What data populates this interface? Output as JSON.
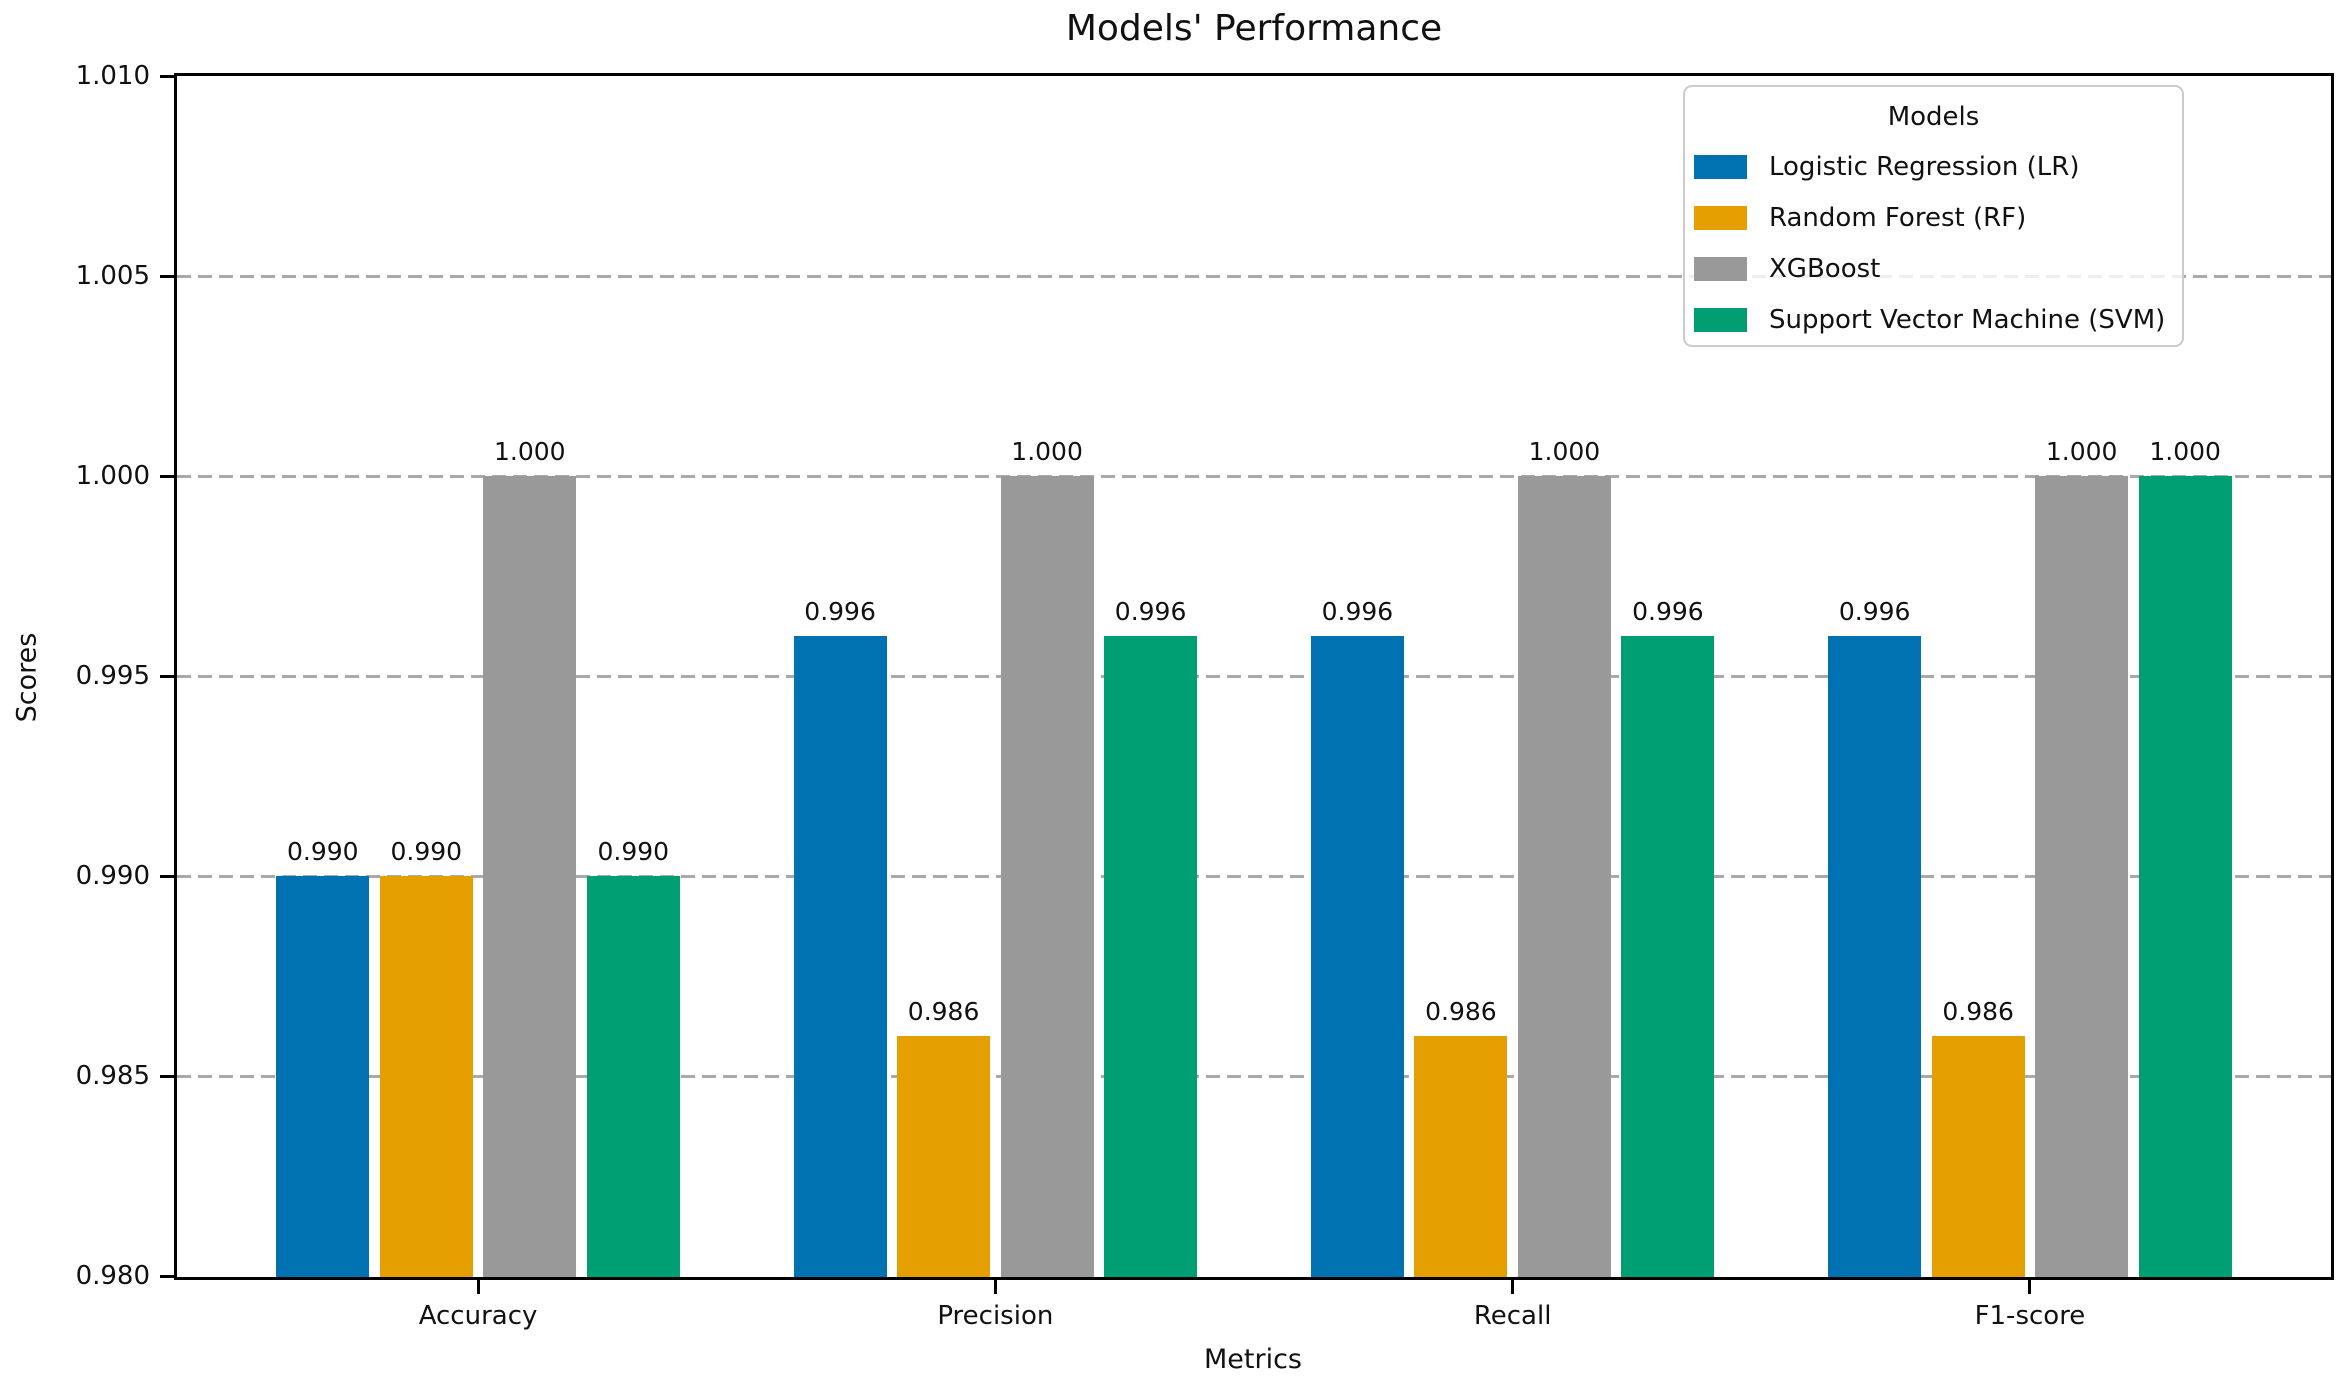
{
  "chart_data": {
    "type": "bar",
    "title": "Models' Performance",
    "xlabel": "Metrics",
    "ylabel": "Scores",
    "categories": [
      "Accuracy",
      "Precision",
      "Recall",
      "F1-score"
    ],
    "series": [
      {
        "name": "Logistic Regression (LR)",
        "color": "#0072B2",
        "values": [
          0.99,
          0.996,
          0.996,
          0.996
        ],
        "labels": [
          "0.990",
          "0.996",
          "0.996",
          "0.996"
        ]
      },
      {
        "name": "Random Forest (RF)",
        "color": "#E69F00",
        "values": [
          0.99,
          0.986,
          0.986,
          0.986
        ],
        "labels": [
          "0.990",
          "0.986",
          "0.986",
          "0.986"
        ]
      },
      {
        "name": "XGBoost",
        "color": "#999999",
        "values": [
          1.0,
          1.0,
          1.0,
          1.0
        ],
        "labels": [
          "1.000",
          "1.000",
          "1.000",
          "1.000"
        ]
      },
      {
        "name": "Support Vector Machine (SVM)",
        "color": "#009E73",
        "values": [
          0.99,
          0.996,
          0.996,
          1.0
        ],
        "labels": [
          "0.990",
          "0.996",
          "0.996",
          "1.000"
        ]
      }
    ],
    "ylim": [
      0.98,
      1.01
    ],
    "yticks": [
      0.98,
      0.985,
      0.99,
      0.995,
      1.0,
      1.005,
      1.01
    ],
    "ytick_labels": [
      "0.980",
      "0.985",
      "0.990",
      "0.995",
      "1.000",
      "1.005",
      "1.010"
    ],
    "grid": {
      "axis": "y",
      "style": "dashed",
      "color": "#a9a9a9"
    },
    "legend": {
      "title": "Models",
      "position": "upper right"
    }
  }
}
